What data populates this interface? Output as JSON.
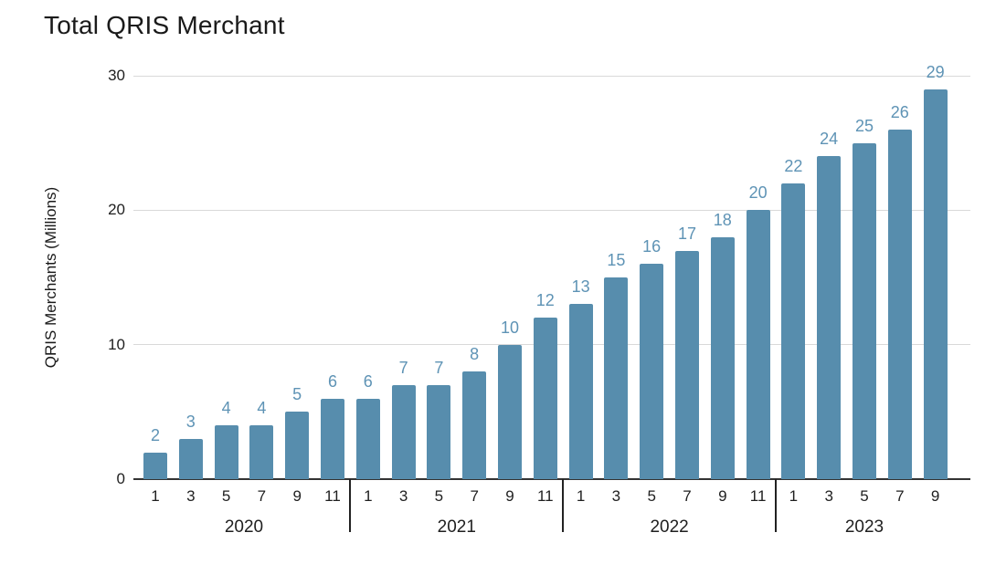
{
  "chart_data": {
    "type": "bar",
    "title": "Total QRIS Merchant",
    "xlabel": "",
    "ylabel": "QRIS Merchants (Millions)",
    "ylim": [
      0,
      30
    ],
    "yticks": [
      0,
      10,
      20,
      30
    ],
    "grid": true,
    "legend": "none",
    "colors": {
      "bar": "#578dad",
      "value_label": "#5e93b5",
      "gridline": "#d9d9d9",
      "axis_line": "#333333",
      "text": "#1f1f1f"
    },
    "groups": [
      {
        "year": "2020",
        "months": [
          "1",
          "3",
          "5",
          "7",
          "9",
          "11"
        ],
        "values": [
          2,
          3,
          4,
          4,
          5,
          6
        ]
      },
      {
        "year": "2021",
        "months": [
          "1",
          "3",
          "5",
          "7",
          "9",
          "11"
        ],
        "values": [
          6,
          7,
          7,
          8,
          10,
          12
        ]
      },
      {
        "year": "2022",
        "months": [
          "1",
          "3",
          "5",
          "7",
          "9",
          "11"
        ],
        "values": [
          13,
          15,
          16,
          17,
          18,
          20
        ]
      },
      {
        "year": "2023",
        "months": [
          "1",
          "3",
          "5",
          "7",
          "9"
        ],
        "values": [
          22,
          24,
          25,
          26,
          29
        ]
      }
    ]
  }
}
